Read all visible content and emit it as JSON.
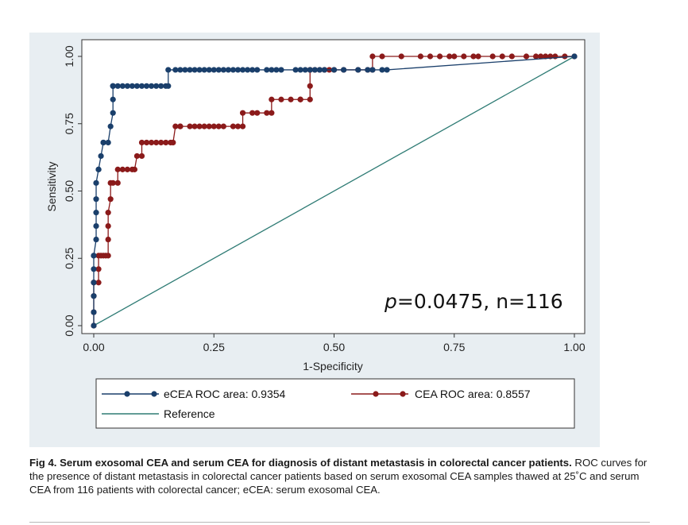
{
  "chart_data": {
    "type": "line",
    "xlabel": "1-Specificity",
    "ylabel": "Sensitivity",
    "xlim": [
      0,
      1
    ],
    "ylim": [
      0,
      1
    ],
    "xticks": [
      "0.00",
      "0.25",
      "0.50",
      "0.75",
      "1.00"
    ],
    "yticks": [
      "0.00",
      "0.25",
      "0.50",
      "0.75",
      "1.00"
    ],
    "annotation_italic": "p",
    "annotation_rest": "=0.0475, n=116",
    "grid": false,
    "legend_position": "bottom",
    "colors": {
      "ecea": "#1a3f6b",
      "cea": "#8b1a1a",
      "reference": "#2e7b74",
      "plot_background": "#ffffff",
      "figure_background": "#e8eef2"
    },
    "series": [
      {
        "name": "eCEA ROC area: 0.9354",
        "key": "ecea",
        "x": [
          0.0,
          0.0,
          0.0,
          0.0,
          0.0,
          0.0,
          0.0,
          0.005,
          0.005,
          0.005,
          0.005,
          0.005,
          0.01,
          0.01,
          0.015,
          0.02,
          0.02,
          0.03,
          0.035,
          0.04,
          0.04,
          0.04,
          0.04,
          0.04,
          0.05,
          0.06,
          0.07,
          0.08,
          0.09,
          0.1,
          0.11,
          0.12,
          0.13,
          0.14,
          0.15,
          0.155,
          0.155,
          0.17,
          0.18,
          0.19,
          0.2,
          0.21,
          0.22,
          0.23,
          0.24,
          0.25,
          0.26,
          0.27,
          0.28,
          0.29,
          0.3,
          0.31,
          0.32,
          0.33,
          0.34,
          0.36,
          0.37,
          0.38,
          0.39,
          0.42,
          0.43,
          0.44,
          0.45,
          0.46,
          0.47,
          0.48,
          0.5,
          0.52,
          0.55,
          0.57,
          0.58,
          0.6,
          0.61,
          1.0
        ],
        "y": [
          0.0,
          0.05,
          0.11,
          0.16,
          0.21,
          0.26,
          0.26,
          0.32,
          0.37,
          0.42,
          0.47,
          0.53,
          0.58,
          0.58,
          0.63,
          0.68,
          0.68,
          0.68,
          0.74,
          0.79,
          0.84,
          0.89,
          0.89,
          0.89,
          0.89,
          0.89,
          0.89,
          0.89,
          0.89,
          0.89,
          0.89,
          0.89,
          0.89,
          0.89,
          0.89,
          0.89,
          0.95,
          0.95,
          0.95,
          0.95,
          0.95,
          0.95,
          0.95,
          0.95,
          0.95,
          0.95,
          0.95,
          0.95,
          0.95,
          0.95,
          0.95,
          0.95,
          0.95,
          0.95,
          0.95,
          0.95,
          0.95,
          0.95,
          0.95,
          0.95,
          0.95,
          0.95,
          0.95,
          0.95,
          0.95,
          0.95,
          0.95,
          0.95,
          0.95,
          0.95,
          0.95,
          0.95,
          0.95,
          1.0
        ]
      },
      {
        "name": "CEA ROC area: 0.8557",
        "key": "cea",
        "x": [
          0.0,
          0.0,
          0.0,
          0.0,
          0.0,
          0.01,
          0.01,
          0.01,
          0.015,
          0.02,
          0.025,
          0.03,
          0.03,
          0.03,
          0.03,
          0.035,
          0.035,
          0.04,
          0.05,
          0.05,
          0.06,
          0.07,
          0.08,
          0.085,
          0.09,
          0.1,
          0.1,
          0.11,
          0.12,
          0.13,
          0.14,
          0.15,
          0.16,
          0.165,
          0.17,
          0.18,
          0.18,
          0.2,
          0.21,
          0.22,
          0.23,
          0.24,
          0.25,
          0.26,
          0.27,
          0.29,
          0.3,
          0.31,
          0.31,
          0.33,
          0.34,
          0.36,
          0.37,
          0.37,
          0.39,
          0.41,
          0.43,
          0.43,
          0.45,
          0.45,
          0.45,
          0.45,
          0.46,
          0.47,
          0.48,
          0.49,
          0.5,
          0.52,
          0.55,
          0.57,
          0.58,
          0.58,
          0.6,
          0.64,
          0.68,
          0.7,
          0.72,
          0.74,
          0.75,
          0.77,
          0.79,
          0.8,
          0.83,
          0.85,
          0.87,
          0.9,
          0.92,
          0.93,
          0.94,
          0.95,
          0.96,
          0.98,
          1.0
        ],
        "y": [
          0.0,
          0.05,
          0.11,
          0.16,
          0.16,
          0.16,
          0.21,
          0.26,
          0.26,
          0.26,
          0.26,
          0.26,
          0.32,
          0.37,
          0.42,
          0.47,
          0.53,
          0.53,
          0.53,
          0.58,
          0.58,
          0.58,
          0.58,
          0.58,
          0.63,
          0.63,
          0.68,
          0.68,
          0.68,
          0.68,
          0.68,
          0.68,
          0.68,
          0.68,
          0.74,
          0.74,
          0.74,
          0.74,
          0.74,
          0.74,
          0.74,
          0.74,
          0.74,
          0.74,
          0.74,
          0.74,
          0.74,
          0.74,
          0.79,
          0.79,
          0.79,
          0.79,
          0.79,
          0.84,
          0.84,
          0.84,
          0.84,
          0.84,
          0.84,
          0.89,
          0.95,
          0.95,
          0.95,
          0.95,
          0.95,
          0.95,
          0.95,
          0.95,
          0.95,
          0.95,
          0.95,
          1.0,
          1.0,
          1.0,
          1.0,
          1.0,
          1.0,
          1.0,
          1.0,
          1.0,
          1.0,
          1.0,
          1.0,
          1.0,
          1.0,
          1.0,
          1.0,
          1.0,
          1.0,
          1.0,
          1.0,
          1.0,
          1.0
        ]
      },
      {
        "name": "Reference",
        "key": "reference",
        "x": [
          0,
          1
        ],
        "y": [
          0,
          1
        ]
      }
    ]
  },
  "caption": {
    "bold": "Fig 4. Serum exosomal CEA and serum CEA for diagnosis of distant metastasis in colorectal cancer patients.",
    "text": " ROC curves for the presence of distant metastasis in colorectal cancer patients based on serum exosomal CEA samples thawed at 25˚C and serum CEA from 116 patients with colorectal cancer; eCEA: serum exosomal CEA."
  }
}
